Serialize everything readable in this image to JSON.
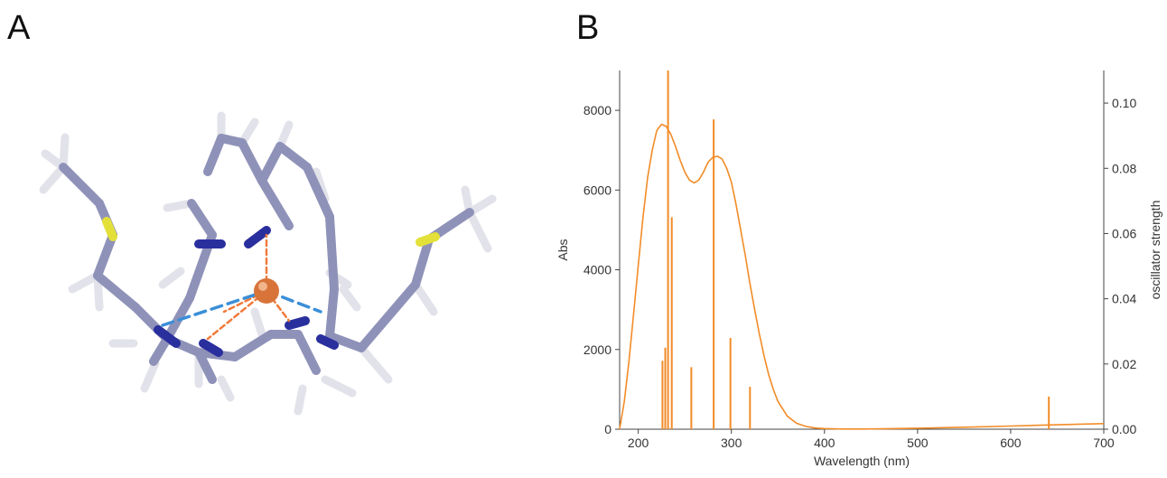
{
  "panels": {
    "a_label": "A",
    "b_label": "B"
  },
  "molecule": {
    "colors": {
      "carbon": "#8f92b8",
      "nitrogen": "#2a2f9e",
      "sulfur": "#e3e03a",
      "hydrogen": "#e4e4ea",
      "metal": "#d8743a",
      "bond_to_metal": "#f07a3a",
      "hbond": "#3b8fd8"
    }
  },
  "chart_data": {
    "type": "line",
    "xlabel": "Wavelength (nm)",
    "ylabel": "Abs",
    "y2label": "oscillator strength",
    "xlim": [
      180,
      700
    ],
    "ylim": [
      0,
      9000
    ],
    "y2lim": [
      0,
      0.11
    ],
    "xticks": [
      "200",
      "300",
      "400",
      "500",
      "600",
      "700"
    ],
    "yticks": [
      "0",
      "2000",
      "4000",
      "6000",
      "8000"
    ],
    "y2ticks": [
      "0.00",
      "0.02",
      "0.04",
      "0.06",
      "0.08",
      "0.10"
    ],
    "color": "#f28c28",
    "series": [
      {
        "x": [
          180,
          185,
          190,
          195,
          200,
          205,
          210,
          215,
          220,
          225,
          230,
          235,
          240,
          245,
          250,
          255,
          260,
          265,
          270,
          275,
          280,
          285,
          290,
          295,
          300,
          305,
          310,
          315,
          320,
          325,
          330,
          335,
          340,
          345,
          350,
          360,
          370,
          380,
          390,
          400,
          410,
          420,
          440,
          460,
          500,
          550,
          600,
          650,
          700
        ],
        "y": [
          0,
          700,
          1700,
          2900,
          4100,
          5300,
          6300,
          7000,
          7500,
          7650,
          7600,
          7400,
          7100,
          6750,
          6450,
          6250,
          6180,
          6250,
          6450,
          6700,
          6820,
          6850,
          6780,
          6550,
          6200,
          5650,
          5000,
          4350,
          3650,
          3000,
          2400,
          1850,
          1380,
          1000,
          700,
          330,
          150,
          70,
          30,
          15,
          8,
          5,
          5,
          10,
          25,
          50,
          80,
          110,
          140
        ]
      }
    ],
    "sticks": [
      {
        "x": 226,
        "f": 0.021
      },
      {
        "x": 229,
        "f": 0.025
      },
      {
        "x": 232,
        "f": 0.11
      },
      {
        "x": 236,
        "f": 0.065
      },
      {
        "x": 257,
        "f": 0.019
      },
      {
        "x": 281,
        "f": 0.095
      },
      {
        "x": 299,
        "f": 0.028
      },
      {
        "x": 320,
        "f": 0.013
      },
      {
        "x": 641,
        "f": 0.01
      }
    ]
  }
}
